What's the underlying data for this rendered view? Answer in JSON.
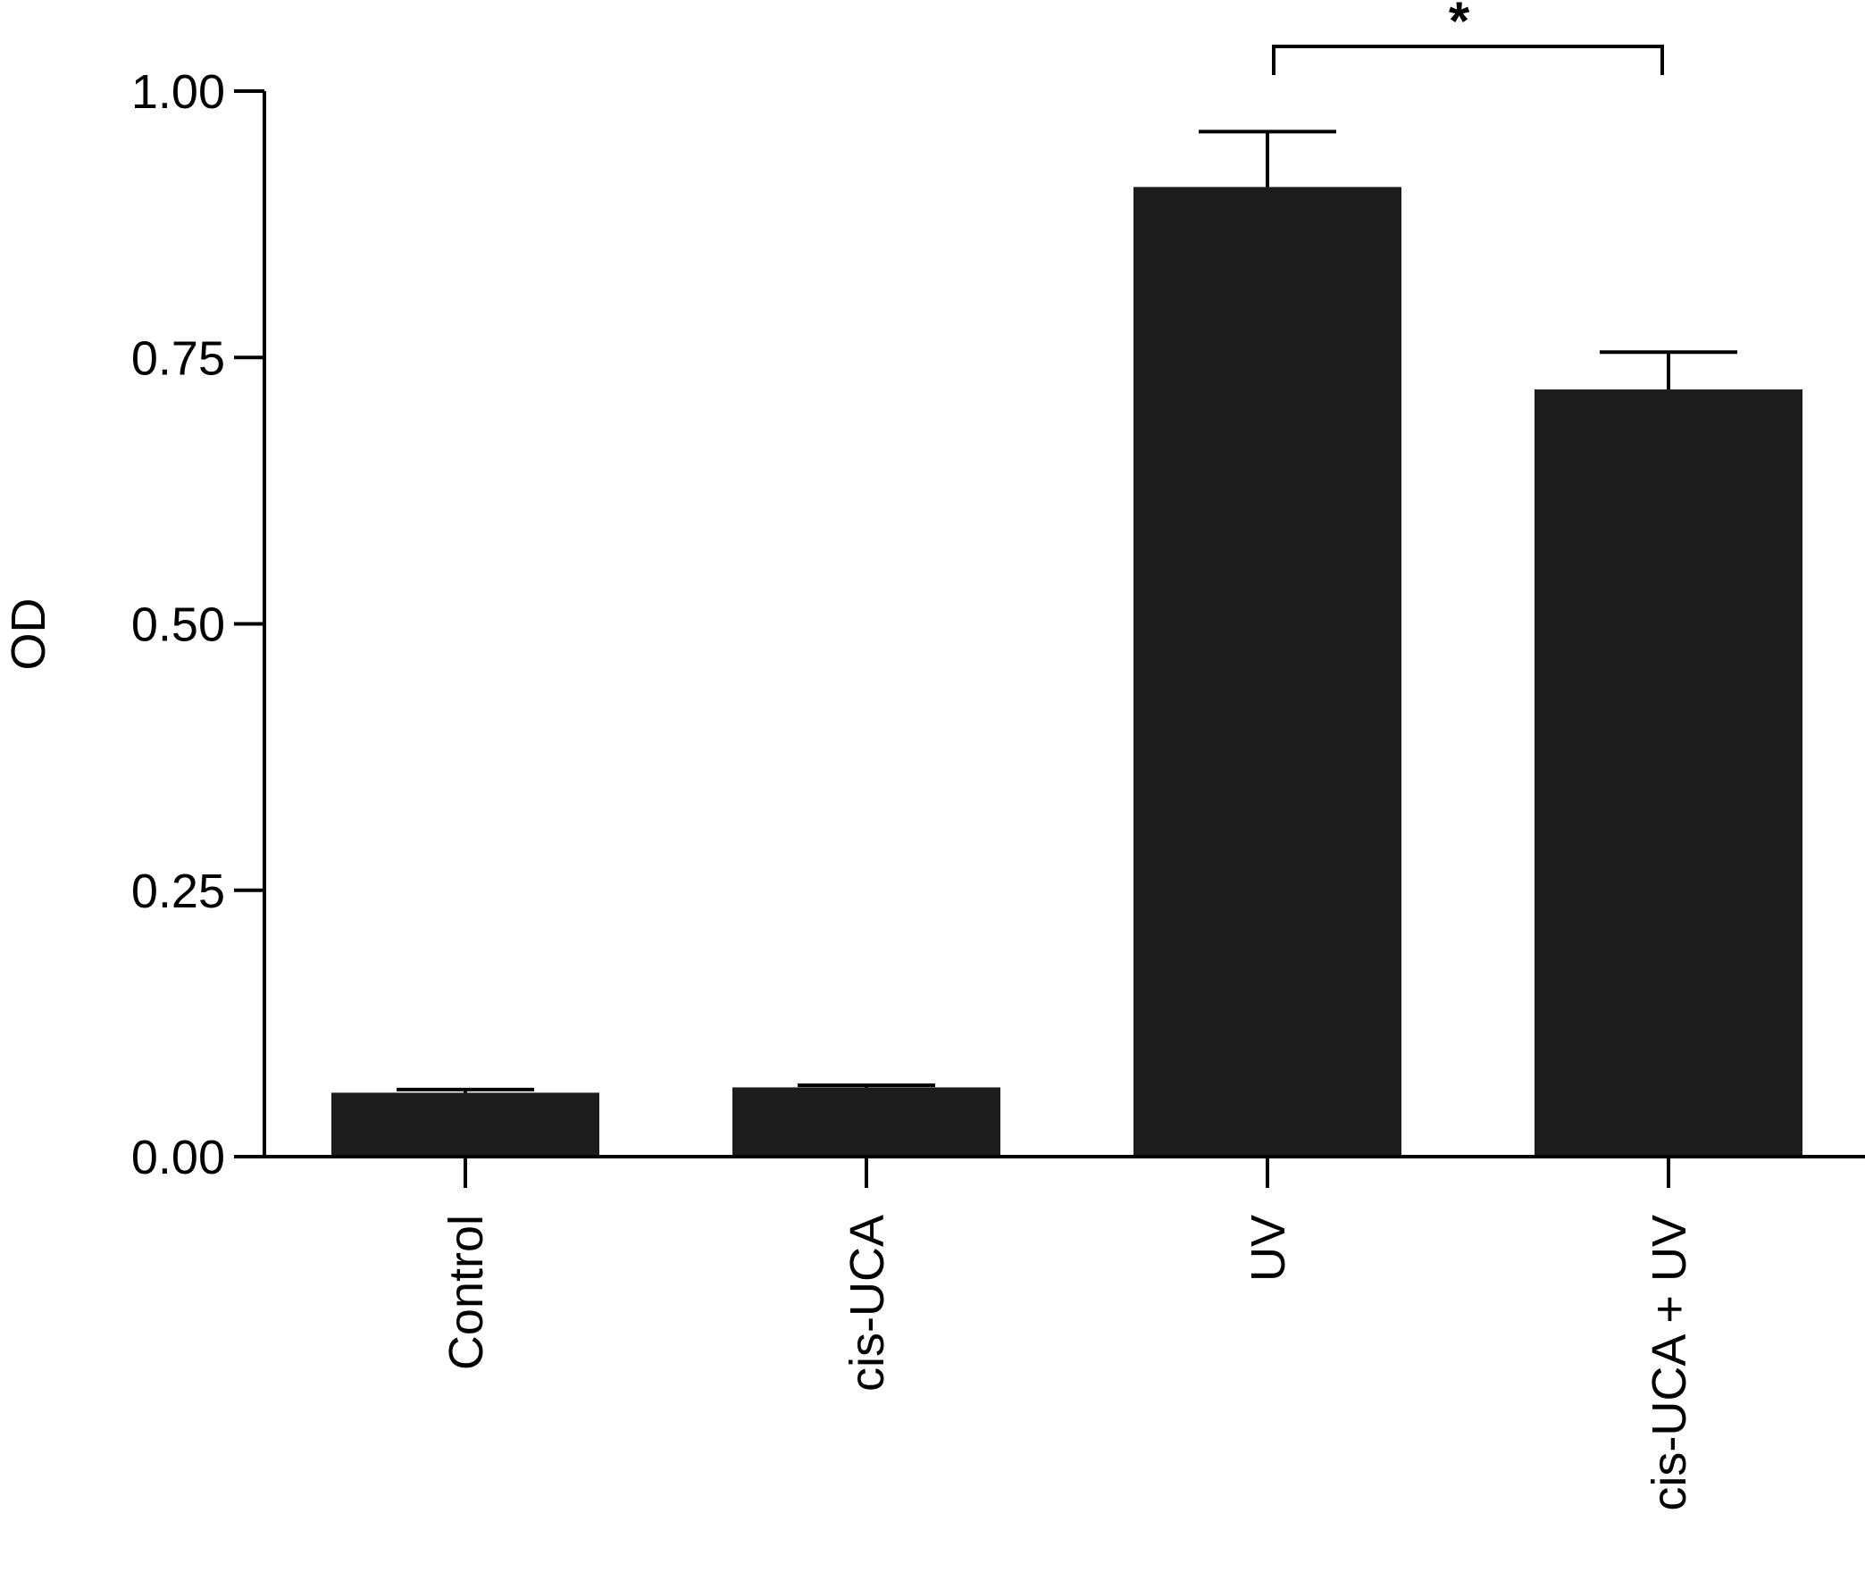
{
  "chart_data": {
    "type": "bar",
    "categories": [
      "Control",
      "cis-UCA",
      "UV",
      "cis-UCA + UV"
    ],
    "values": [
      0.06,
      0.065,
      0.91,
      0.72
    ],
    "errors": [
      0.003,
      0.002,
      0.052,
      0.035
    ],
    "title": "",
    "xlabel": "",
    "ylabel": "OD",
    "ylim": [
      0,
      1.0
    ],
    "yticks": [
      "0.00",
      "0.25",
      "0.50",
      "0.75",
      "1.00"
    ],
    "bar_color": "#1c1c1c",
    "grid": false,
    "annotations": [
      {
        "text": "*",
        "from": "UV",
        "to": "cis-UCA + UV"
      }
    ]
  }
}
